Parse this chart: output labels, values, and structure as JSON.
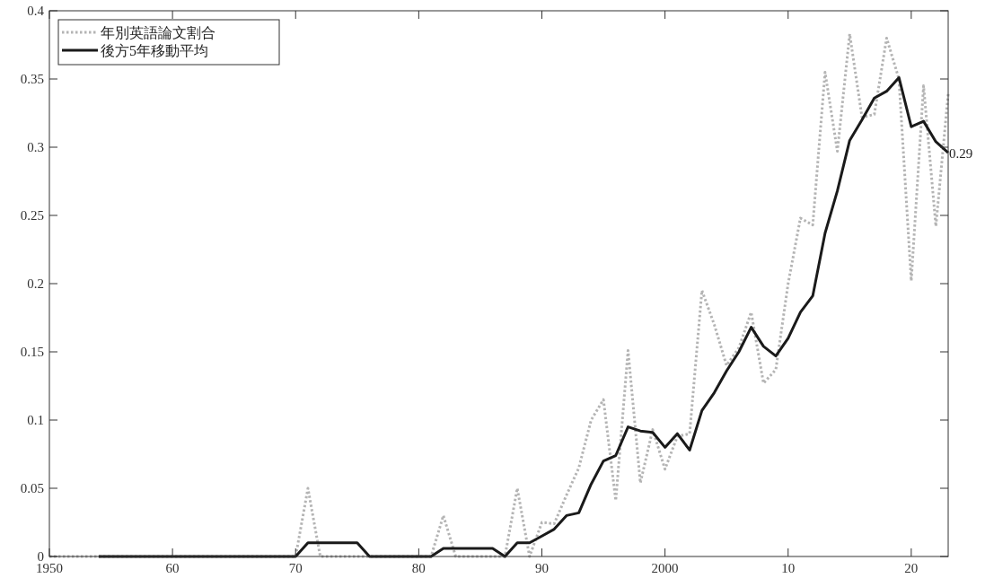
{
  "chart_data": {
    "type": "line",
    "xlim": [
      1950,
      2023
    ],
    "ylim": [
      0,
      0.4
    ],
    "xticks": [
      1950,
      {
        "value": 1960,
        "label": "60"
      },
      {
        "value": 1970,
        "label": "70"
      },
      {
        "value": 1980,
        "label": "80"
      },
      {
        "value": 1990,
        "label": "90"
      },
      2000,
      {
        "value": 2010,
        "label": "10"
      },
      {
        "value": 2020,
        "label": "20"
      }
    ],
    "yticks": [
      0,
      0.05,
      0.1,
      0.15,
      0.2,
      0.25,
      0.3,
      0.35,
      0.4
    ],
    "grid": false,
    "legend": "top left",
    "series": [
      {
        "name": "年別英語論文割合",
        "color": "#b4b4b4",
        "line_style": "dotted",
        "x": [
          1950,
          1951,
          1952,
          1953,
          1954,
          1955,
          1956,
          1957,
          1958,
          1959,
          1960,
          1961,
          1962,
          1963,
          1964,
          1965,
          1966,
          1967,
          1968,
          1969,
          1970,
          1971,
          1972,
          1973,
          1974,
          1975,
          1976,
          1977,
          1978,
          1979,
          1980,
          1981,
          1982,
          1983,
          1984,
          1985,
          1986,
          1987,
          1988,
          1989,
          1990,
          1991,
          1992,
          1993,
          1994,
          1995,
          1996,
          1997,
          1998,
          1999,
          2000,
          2001,
          2002,
          2003,
          2004,
          2005,
          2006,
          2007,
          2008,
          2009,
          2010,
          2011,
          2012,
          2013,
          2014,
          2015,
          2016,
          2017,
          2018,
          2019,
          2020,
          2021,
          2022,
          2023
        ],
        "values": [
          0,
          0,
          0,
          0,
          0,
          0,
          0,
          0,
          0,
          0,
          0,
          0,
          0,
          0,
          0,
          0,
          0,
          0,
          0,
          0,
          0,
          0.05,
          0,
          0,
          0,
          0,
          0,
          0,
          0,
          0,
          0,
          0,
          0.03,
          0,
          0,
          0,
          0,
          0,
          0.05,
          0,
          0.025,
          0.024,
          0.045,
          0.065,
          0.1,
          0.115,
          0.041,
          0.151,
          0.054,
          0.093,
          0.064,
          0.088,
          0.09,
          0.195,
          0.17,
          0.14,
          0.153,
          0.179,
          0.127,
          0.137,
          0.2,
          0.248,
          0.243,
          0.355,
          0.297,
          0.383,
          0.322,
          0.324,
          0.38,
          0.35,
          0.202,
          0.345,
          0.242,
          0.339
        ]
      },
      {
        "name": "後方5年移動平均",
        "color": "#1a1a1a",
        "line_style": "solid",
        "x": [
          1954,
          1955,
          1956,
          1957,
          1958,
          1959,
          1960,
          1961,
          1962,
          1963,
          1964,
          1965,
          1966,
          1967,
          1968,
          1969,
          1970,
          1971,
          1972,
          1973,
          1974,
          1975,
          1976,
          1977,
          1978,
          1979,
          1980,
          1981,
          1982,
          1983,
          1984,
          1985,
          1986,
          1987,
          1988,
          1989,
          1990,
          1991,
          1992,
          1993,
          1994,
          1995,
          1996,
          1997,
          1998,
          1999,
          2000,
          2001,
          2002,
          2003,
          2004,
          2005,
          2006,
          2007,
          2008,
          2009,
          2010,
          2011,
          2012,
          2013,
          2014,
          2015,
          2016,
          2017,
          2018,
          2019,
          2020,
          2021,
          2022,
          2023
        ],
        "values": [
          0,
          0,
          0,
          0,
          0,
          0,
          0,
          0,
          0,
          0,
          0,
          0,
          0,
          0,
          0,
          0,
          0,
          0.01,
          0.01,
          0.01,
          0.01,
          0.01,
          0,
          0,
          0,
          0,
          0,
          0,
          0.006,
          0.006,
          0.006,
          0.006,
          0.006,
          0,
          0.01,
          0.01,
          0.015,
          0.02,
          0.03,
          0.032,
          0.053,
          0.07,
          0.074,
          0.095,
          0.092,
          0.091,
          0.08,
          0.09,
          0.078,
          0.107,
          0.12,
          0.136,
          0.15,
          0.168,
          0.154,
          0.147,
          0.16,
          0.179,
          0.191,
          0.237,
          0.268,
          0.305,
          0.32,
          0.336,
          0.341,
          0.351,
          0.315,
          0.319,
          0.304,
          0.296
        ]
      }
    ],
    "annotations": [
      {
        "text": "0.29",
        "x": 2023,
        "y": 0.296
      }
    ]
  }
}
